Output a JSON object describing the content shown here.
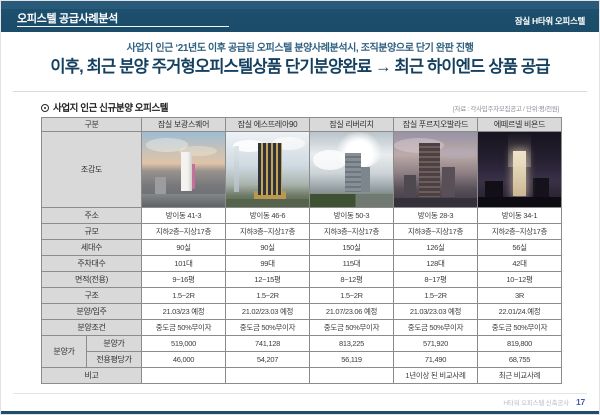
{
  "header": {
    "title": "오피스텔 공급사례분석",
    "project": "잠실 H타워 오피스텔"
  },
  "headline": {
    "subtitle": "사업지 인근  ‘21년도 이후 공급된 오피스텔 분양사례분석시, 조직분양으로 단기 완판 진행",
    "main": "이후, 최근 분양 주거형오피스텔상품 단기분양완료 → 최근 하이엔드 상품 공급"
  },
  "section": {
    "title": "사업지 인근 신규분양 오피스텔",
    "source": "[자료 : 각사입주자모집공고 / 단위:평/천원]"
  },
  "table": {
    "corner_label": "구분",
    "columns": [
      "잠실 보광스퀘어",
      "잠실 에스뜨레아90",
      "잠실 리버리치",
      "잠실 푸르지오발라드",
      "에떼르넬 비욘드"
    ],
    "image_row_label": "조감도",
    "rows": [
      {
        "label": "주소",
        "values": [
          "방이동 41-3",
          "방이동 46-6",
          "방이동 50-3",
          "방이동 28-3",
          "방이동 34-1"
        ]
      },
      {
        "label": "규모",
        "values": [
          "지하2층~지상17층",
          "지하3층~지상17층",
          "지하3층~지상17층",
          "지하3층~지상17층",
          "지하2층~지상17층"
        ]
      },
      {
        "label": "세대수",
        "values": [
          "90실",
          "90실",
          "150실",
          "126실",
          "56실"
        ]
      },
      {
        "label": "주차대수",
        "values": [
          "101대",
          "99대",
          "115대",
          "128대",
          "42대"
        ]
      },
      {
        "label": "면적(전용)",
        "values": [
          "9~16평",
          "12~15평",
          "8~12평",
          "8~17평",
          "10~12평"
        ]
      },
      {
        "label": "구조",
        "values": [
          "1.5~2R",
          "1.5~2R",
          "1.5~2R",
          "1.5~2R",
          "3R"
        ]
      },
      {
        "label": "분양/입주",
        "values": [
          "21.03/23 예정",
          "21.02/23.03 예정",
          "21.07/23.06 예정",
          "21.03/23.03 예정",
          "22.01/24.예정"
        ]
      },
      {
        "label": "분양조건",
        "values": [
          "중도금 50%무이자",
          "중도금 50%무이자",
          "중도금 50%무이자",
          "중도금 50%무이자",
          "중도금 50%무이자"
        ]
      }
    ],
    "price_group": {
      "label": "분양가",
      "rows": [
        {
          "label": "분양가",
          "values": [
            "519,000",
            "741,128",
            "813,225",
            "571,920",
            "819,800"
          ]
        },
        {
          "label": "전용평당가",
          "values": [
            "46,000",
            "54,207",
            "56,119",
            "71,490",
            "68,755"
          ]
        }
      ]
    },
    "remark_row": {
      "label": "비고",
      "values": [
        "",
        "",
        "",
        "1년이상 된 비교사례",
        "최근 비교사례"
      ]
    }
  },
  "footer": {
    "label": "H타워 오피스텔 신축공사",
    "page": "17"
  },
  "colors": {
    "band_navy": "#1c506e",
    "headline_navy": "#143f5f",
    "table_header_gray": "#d9d9d9",
    "page_number_blue": "#3f5fa8"
  }
}
